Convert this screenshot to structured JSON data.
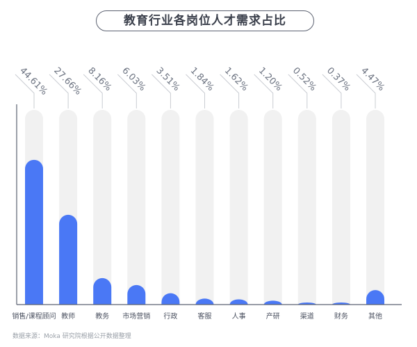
{
  "chart_data": {
    "type": "bar",
    "title": "教育行业各岗位人才需求占比",
    "categories": [
      "销售/课程顾问",
      "教师",
      "教务",
      "市场营销",
      "行政",
      "客服",
      "人事",
      "产研",
      "渠道",
      "财务",
      "其他"
    ],
    "values": [
      44.61,
      27.66,
      8.16,
      6.03,
      3.51,
      1.84,
      1.62,
      1.2,
      0.52,
      0.37,
      4.47
    ],
    "labels": [
      "44.61%",
      "27.66%",
      "8.16%",
      "6.03%",
      "3.51%",
      "1.84%",
      "1.62%",
      "1.20%",
      "0.52%",
      "0.37%",
      "4.47%"
    ],
    "ylim": [
      0,
      60
    ],
    "grid": false,
    "colors": {
      "bar": "#4a78f5",
      "track": "#f1f1f1",
      "label": "#6b7280"
    }
  },
  "source": "数据来源：Moka 研究院根据公开数据整理"
}
